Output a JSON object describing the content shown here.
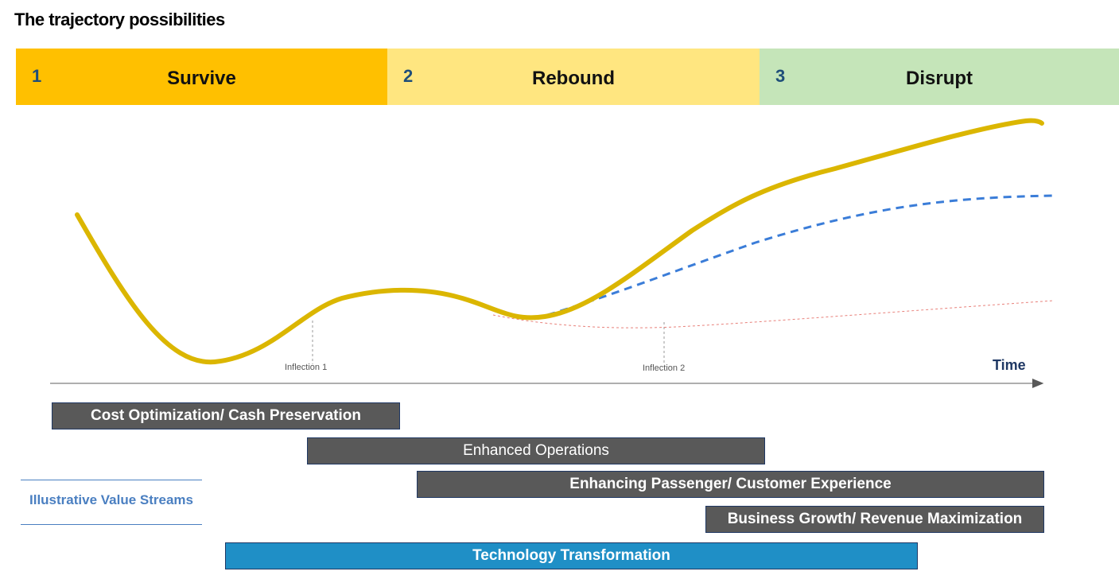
{
  "title": "The trajectory  possibilities",
  "phases": [
    {
      "number": "1",
      "label": "Survive",
      "color": "#ffc000"
    },
    {
      "number": "2",
      "label": "Rebound",
      "color": "#ffe680"
    },
    {
      "number": "3",
      "label": "Disrupt",
      "color": "#c5e5b9"
    }
  ],
  "axis": {
    "x_label": "Time",
    "inflections": [
      "Inflection 1",
      "Inflection 2"
    ]
  },
  "curves": {
    "main_color": "#dbb600",
    "dashed_color": "#3b7dd8",
    "dotted_color": "#e8807a"
  },
  "value_streams": {
    "legend": "Illustrative Value Streams",
    "items": [
      {
        "label": "Cost Optimization/ Cash Preservation",
        "style": "grey-bold"
      },
      {
        "label": "Enhanced Operations",
        "style": "grey"
      },
      {
        "label": "Enhancing Passenger/ Customer Experience",
        "style": "grey-bold"
      },
      {
        "label": "Business Growth/ Revenue Maximization",
        "style": "grey-bold"
      },
      {
        "label": "Technology Transformation",
        "style": "blue-bold"
      }
    ]
  }
}
